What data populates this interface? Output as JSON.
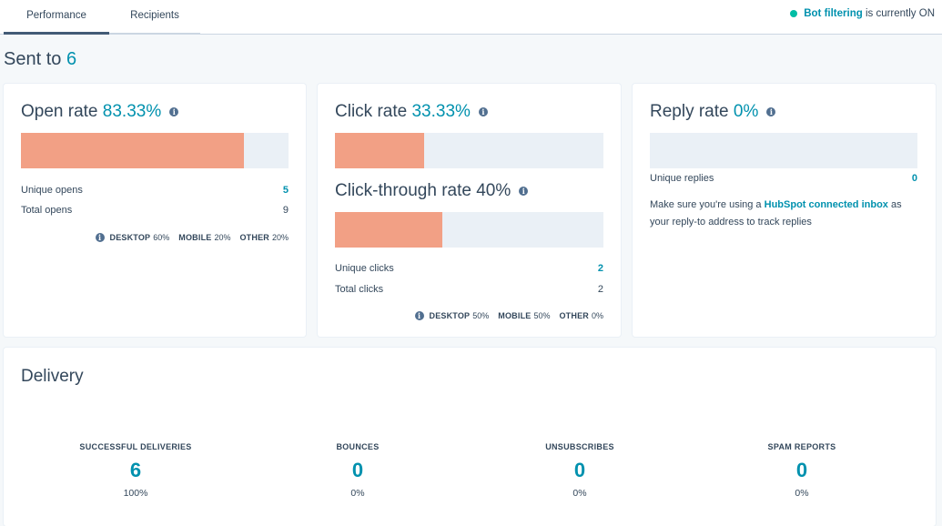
{
  "tabs": [
    {
      "label": "Performance"
    },
    {
      "label": "Recipients"
    }
  ],
  "bot_filtering": {
    "link": "Bot filtering",
    "status": "is currently ON"
  },
  "sent": {
    "label": "Sent to",
    "count": "6"
  },
  "open_rate": {
    "title": "Open rate",
    "value": "83.33%",
    "fill_percent": 83.33,
    "rows": [
      {
        "label": "Unique opens",
        "value": "5"
      },
      {
        "label": "Total opens",
        "value": "9"
      }
    ],
    "devices": {
      "desktop_label": "DESKTOP",
      "desktop": "60%",
      "mobile_label": "MOBILE",
      "mobile": "20%",
      "other_label": "OTHER",
      "other": "20%"
    }
  },
  "click_rate": {
    "title": "Click rate",
    "value": "33.33%",
    "fill_percent": 33.33,
    "ctr_title": "Click-through rate 40%",
    "ctr_fill_percent": 40,
    "rows": [
      {
        "label": "Unique clicks",
        "value": "2"
      },
      {
        "label": "Total clicks",
        "value": "2"
      }
    ],
    "devices": {
      "desktop_label": "DESKTOP",
      "desktop": "50%",
      "mobile_label": "MOBILE",
      "mobile": "50%",
      "other_label": "OTHER",
      "other": "0%"
    }
  },
  "reply_rate": {
    "title": "Reply rate",
    "value": "0%",
    "fill_percent": 0,
    "rows": [
      {
        "label": "Unique replies",
        "value": "0"
      }
    ],
    "note_pre": "Make sure you're using a",
    "note_link": "HubSpot connected inbox",
    "note_post": "as your reply-to address to track replies"
  },
  "delivery": {
    "title": "Delivery",
    "stats": [
      {
        "label": "SUCCESSFUL DELIVERIES",
        "value": "6",
        "pct": "100%"
      },
      {
        "label": "BOUNCES",
        "value": "0",
        "pct": "0%"
      },
      {
        "label": "UNSUBSCRIBES",
        "value": "0",
        "pct": "0%"
      },
      {
        "label": "SPAM REPORTS",
        "value": "0",
        "pct": "0%"
      }
    ]
  },
  "colors": {
    "accent": "#0091ae",
    "bar_fill": "#f2a085",
    "bar_track": "#eaf0f6",
    "status_dot": "#00bda5"
  }
}
